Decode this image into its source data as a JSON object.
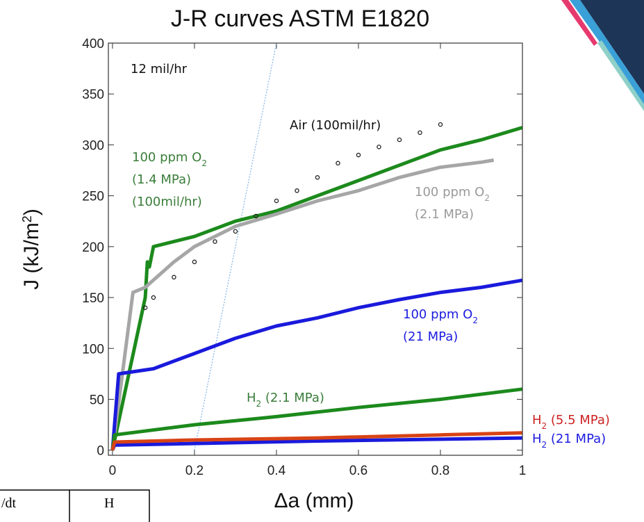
{
  "chart_data": {
    "type": "line",
    "title": "J-R curves ASTM E1820",
    "x_label": "Δa (mm)",
    "y_label": [
      "J (kJ/m",
      "2",
      ")"
    ],
    "xlim": [
      -0.01,
      1.0
    ],
    "ylim": [
      -5,
      400
    ],
    "xticks": [
      0,
      0.2,
      0.4,
      0.6,
      0.8,
      1
    ],
    "yticks": [
      0,
      50,
      100,
      150,
      200,
      250,
      300,
      350,
      400
    ],
    "series": [
      {
        "style": "dotted",
        "color": "#7fb2e5",
        "x": [
          0.2,
          0.4
        ],
        "y": [
          0,
          400
        ]
      },
      {
        "style": "line",
        "color": "#1c8a1c",
        "x": [
          0,
          0.08,
          0.085,
          0.09,
          0.1,
          0.2,
          0.3,
          0.4,
          0.5,
          0.6,
          0.7,
          0.8,
          0.9,
          1.0
        ],
        "y": [
          0,
          150,
          185,
          180,
          200,
          210,
          225,
          235,
          250,
          265,
          280,
          295,
          305,
          317
        ]
      },
      {
        "style": "line",
        "color": "#a6a6a6",
        "x": [
          0,
          0.05,
          0.08,
          0.15,
          0.2,
          0.3,
          0.4,
          0.5,
          0.6,
          0.7,
          0.8,
          0.9,
          0.93
        ],
        "y": [
          0,
          155,
          160,
          185,
          200,
          220,
          232,
          245,
          255,
          268,
          278,
          283,
          285
        ]
      },
      {
        "style": "markers",
        "color": "#222222",
        "x": [
          0.08,
          0.1,
          0.15,
          0.2,
          0.25,
          0.3,
          0.35,
          0.4,
          0.45,
          0.5,
          0.55,
          0.6,
          0.65,
          0.7,
          0.75,
          0.8
        ],
        "y": [
          140,
          150,
          170,
          185,
          205,
          215,
          230,
          245,
          255,
          268,
          282,
          290,
          298,
          305,
          312,
          320
        ]
      },
      {
        "style": "line",
        "color": "#1a1adc",
        "x": [
          0,
          0.015,
          0.1,
          0.2,
          0.3,
          0.4,
          0.5,
          0.6,
          0.7,
          0.8,
          0.9,
          1.0
        ],
        "y": [
          0,
          75,
          80,
          95,
          110,
          122,
          130,
          140,
          148,
          155,
          160,
          167
        ]
      },
      {
        "style": "line",
        "color": "#1c8a1c",
        "x": [
          0,
          0.005,
          0.2,
          0.4,
          0.6,
          0.8,
          1.0
        ],
        "y": [
          0,
          15,
          25,
          33,
          42,
          50,
          60
        ]
      },
      {
        "style": "line",
        "color": "#1a1adc",
        "x": [
          0,
          0.005,
          0.5,
          1.0
        ],
        "y": [
          0,
          5,
          9,
          12
        ]
      },
      {
        "style": "line",
        "color": "#d84315",
        "x": [
          0,
          0.005,
          0.2,
          0.5,
          0.8,
          1.0
        ],
        "y": [
          0,
          8,
          10,
          12,
          15,
          17
        ]
      }
    ],
    "annotations": [
      {
        "color": "#111111",
        "lines": [
          [
            "12 mil/hr"
          ]
        ]
      },
      {
        "color": "#111111",
        "lines": [
          [
            "Air (100mil/hr)"
          ]
        ]
      },
      {
        "color": "#3a7d3a",
        "lines": [
          [
            "100 ppm O",
            "2"
          ],
          [
            "(1.4 MPa)"
          ],
          [
            "(100mil/hr)"
          ]
        ]
      },
      {
        "color": "#9a9a9a",
        "lines": [
          [
            "100 ppm O",
            "2"
          ],
          [
            "(2.1 MPa)"
          ]
        ]
      },
      {
        "color": "#1c1ce0",
        "lines": [
          [
            "100 ppm O",
            "2"
          ],
          [
            "(21 MPa)"
          ]
        ]
      },
      {
        "color": "#3a7d3a",
        "lines": [
          [
            "H",
            "2",
            " (2.1 MPa)"
          ]
        ]
      },
      {
        "color": "#cc2222",
        "lines": [
          [
            "H",
            "2",
            " (5.5 MPa)"
          ]
        ]
      },
      {
        "color": "#1c1ce0",
        "lines": [
          [
            "H",
            "2",
            " (21 MPa)"
          ]
        ]
      }
    ]
  },
  "table": {
    "cells": [
      "/dt",
      "H"
    ]
  }
}
